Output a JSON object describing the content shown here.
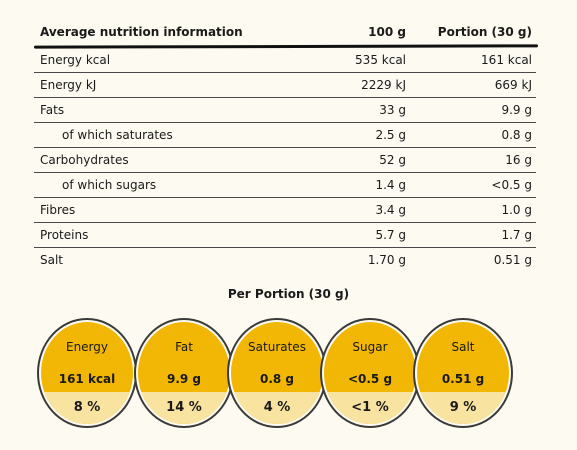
{
  "table": {
    "header": {
      "label": "Average nutrition information",
      "per100": "100 g",
      "portion": "Portion (30 g)"
    },
    "rows": [
      {
        "label": "Energy kcal",
        "per100": "535 kcal",
        "portion": "161 kcal",
        "sub": false
      },
      {
        "label": "Energy kJ",
        "per100": "2229 kJ",
        "portion": "669 kJ",
        "sub": false
      },
      {
        "label": "Fats",
        "per100": "33 g",
        "portion": "9.9 g",
        "sub": false
      },
      {
        "label": "of which saturates",
        "per100": "2.5 g",
        "portion": "0.8 g",
        "sub": true
      },
      {
        "label": "Carbohydrates",
        "per100": "52 g",
        "portion": "16 g",
        "sub": false
      },
      {
        "label": "of which sugars",
        "per100": "1.4 g",
        "portion": "<0.5 g",
        "sub": true
      },
      {
        "label": "Fibres",
        "per100": "3.4 g",
        "portion": "1.0 g",
        "sub": false
      },
      {
        "label": "Proteins",
        "per100": "5.7 g",
        "portion": "1.7 g",
        "sub": false
      },
      {
        "label": "Salt",
        "per100": "1.70 g",
        "portion": "0.51 g",
        "sub": false
      }
    ]
  },
  "portion_section": {
    "title": "Per Portion (30 g)",
    "badges": [
      {
        "name": "Energy",
        "value": "161 kcal",
        "percent": "8 %"
      },
      {
        "name": "Fat",
        "value": "9.9 g",
        "percent": "14 %"
      },
      {
        "name": "Saturates",
        "value": "0.8 g",
        "percent": "4 %"
      },
      {
        "name": "Sugar",
        "value": "<0.5 g",
        "percent": "<1 %"
      },
      {
        "name": "Salt",
        "value": "0.51 g",
        "percent": "9 %"
      }
    ]
  },
  "colors": {
    "badge_top": "#f2b705",
    "badge_bottom": "#f9e3a0",
    "background": "#fcfaf1"
  }
}
